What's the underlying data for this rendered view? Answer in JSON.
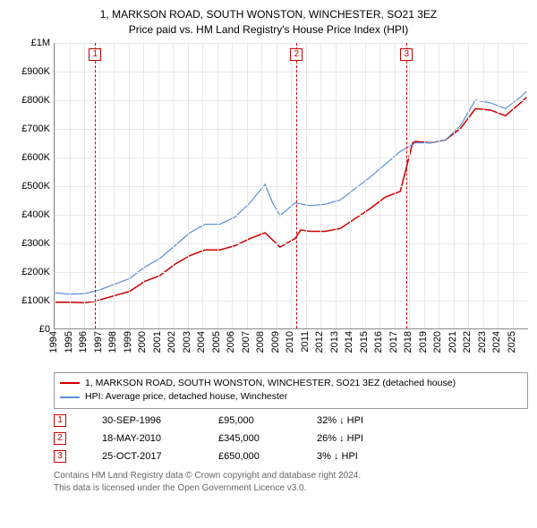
{
  "title_line1": "1, MARKSON ROAD, SOUTH WONSTON, WINCHESTER, SO21 3EZ",
  "title_line2": "Price paid vs. HM Land Registry's House Price Index (HPI)",
  "chart": {
    "type": "line",
    "background_color": "#ffffff",
    "grid_color": "#e8e8e8",
    "axis_color": "#888888",
    "label_fontsize": 11,
    "x_years": [
      1994,
      1995,
      1996,
      1997,
      1998,
      1999,
      2000,
      2001,
      2002,
      2003,
      2004,
      2005,
      2006,
      2007,
      2008,
      2009,
      2010,
      2011,
      2012,
      2013,
      2014,
      2015,
      2016,
      2017,
      2018,
      2019,
      2020,
      2021,
      2022,
      2023,
      2024,
      2025
    ],
    "y_ticks": [
      0,
      100000,
      200000,
      300000,
      400000,
      500000,
      600000,
      700000,
      800000,
      900000,
      1000000
    ],
    "y_labels": [
      "£0",
      "£100K",
      "£200K",
      "£300K",
      "£400K",
      "£500K",
      "£600K",
      "£700K",
      "£800K",
      "£900K",
      "£1M"
    ],
    "xlim": [
      1994,
      2025.5
    ],
    "ylim": [
      0,
      1000000
    ],
    "series": [
      {
        "id": "price_paid",
        "label": "1, MARKSON ROAD, SOUTH WONSTON, WINCHESTER, SO21 3EZ (detached house)",
        "color": "#cc0000",
        "line_width": 1.5,
        "points": [
          [
            1994,
            92000
          ],
          [
            1995,
            92000
          ],
          [
            1996,
            90000
          ],
          [
            1996.75,
            95000
          ],
          [
            1997,
            100000
          ],
          [
            1998,
            115000
          ],
          [
            1999,
            130000
          ],
          [
            2000,
            165000
          ],
          [
            2001,
            185000
          ],
          [
            2002,
            225000
          ],
          [
            2003,
            255000
          ],
          [
            2004,
            275000
          ],
          [
            2005,
            275000
          ],
          [
            2006,
            290000
          ],
          [
            2007,
            315000
          ],
          [
            2008,
            335000
          ],
          [
            2009,
            285000
          ],
          [
            2010,
            315000
          ],
          [
            2010.38,
            345000
          ],
          [
            2011,
            340000
          ],
          [
            2012,
            340000
          ],
          [
            2013,
            350000
          ],
          [
            2014,
            385000
          ],
          [
            2015,
            420000
          ],
          [
            2016,
            460000
          ],
          [
            2017,
            480000
          ],
          [
            2017.82,
            650000
          ],
          [
            2018,
            655000
          ],
          [
            2019,
            650000
          ],
          [
            2020,
            660000
          ],
          [
            2021,
            700000
          ],
          [
            2022,
            770000
          ],
          [
            2023,
            765000
          ],
          [
            2024,
            745000
          ],
          [
            2025,
            790000
          ],
          [
            2025.4,
            810000
          ]
        ]
      },
      {
        "id": "hpi",
        "label": "HPI: Average price, detached house, Winchester",
        "color": "#5b8fd6",
        "line_width": 1.2,
        "points": [
          [
            1994,
            125000
          ],
          [
            1995,
            120000
          ],
          [
            1996,
            122000
          ],
          [
            1997,
            135000
          ],
          [
            1998,
            155000
          ],
          [
            1999,
            175000
          ],
          [
            2000,
            215000
          ],
          [
            2001,
            245000
          ],
          [
            2002,
            290000
          ],
          [
            2003,
            335000
          ],
          [
            2004,
            365000
          ],
          [
            2005,
            365000
          ],
          [
            2006,
            390000
          ],
          [
            2007,
            440000
          ],
          [
            2008,
            505000
          ],
          [
            2008.5,
            440000
          ],
          [
            2009,
            395000
          ],
          [
            2010,
            440000
          ],
          [
            2011,
            430000
          ],
          [
            2012,
            435000
          ],
          [
            2013,
            450000
          ],
          [
            2014,
            490000
          ],
          [
            2015,
            530000
          ],
          [
            2016,
            575000
          ],
          [
            2017,
            620000
          ],
          [
            2018,
            650000
          ],
          [
            2019,
            650000
          ],
          [
            2020,
            660000
          ],
          [
            2021,
            710000
          ],
          [
            2022,
            800000
          ],
          [
            2023,
            790000
          ],
          [
            2024,
            770000
          ],
          [
            2025,
            810000
          ],
          [
            2025.4,
            830000
          ]
        ]
      }
    ],
    "markers": [
      {
        "n": "1",
        "x": 1996.75
      },
      {
        "n": "2",
        "x": 2010.38
      },
      {
        "n": "3",
        "x": 2017.82
      }
    ],
    "marker_color": "#cc0000"
  },
  "legend": {
    "border_color": "#999999",
    "items": [
      {
        "color": "#cc0000",
        "label": "1, MARKSON ROAD, SOUTH WONSTON, WINCHESTER, SO21 3EZ (detached house)"
      },
      {
        "color": "#5b8fd6",
        "label": "HPI: Average price, detached house, Winchester"
      }
    ]
  },
  "sales": [
    {
      "n": "1",
      "date": "30-SEP-1996",
      "price": "£95,000",
      "diff": "32% ↓ HPI"
    },
    {
      "n": "2",
      "date": "18-MAY-2010",
      "price": "£345,000",
      "diff": "26% ↓ HPI"
    },
    {
      "n": "3",
      "date": "25-OCT-2017",
      "price": "£650,000",
      "diff": "3% ↓ HPI"
    }
  ],
  "footer_line1": "Contains HM Land Registry data © Crown copyright and database right 2024.",
  "footer_line2": "This data is licensed under the Open Government Licence v3.0."
}
